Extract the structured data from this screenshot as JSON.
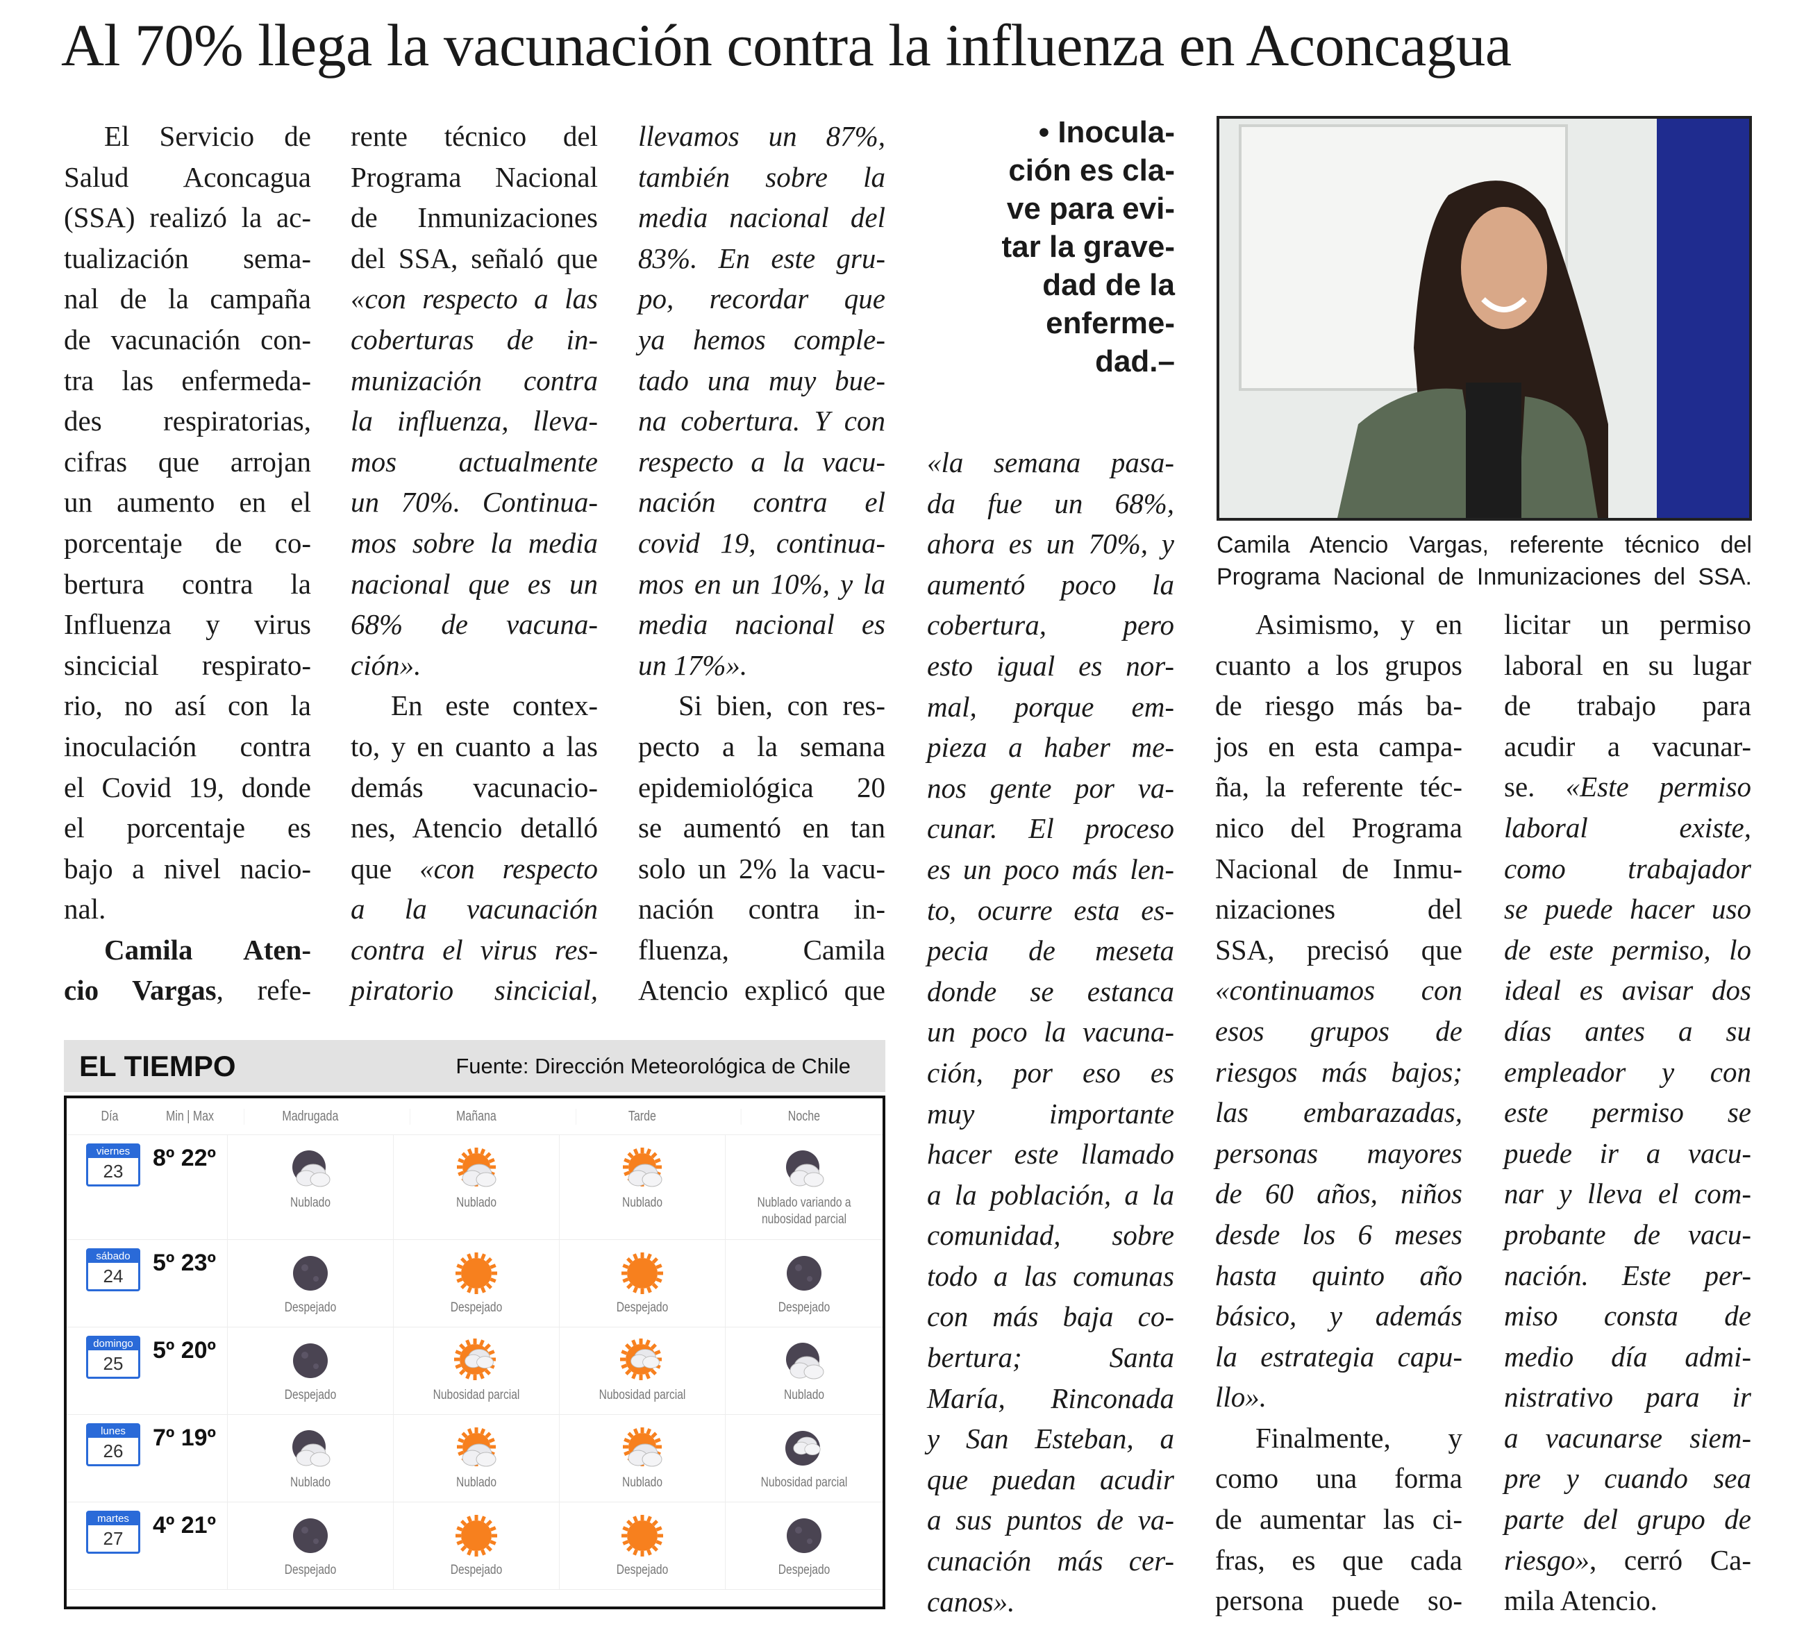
{
  "headline": "Al 70% llega la vacunación contra la influenza en Aconcagua",
  "columns": [
    {
      "s": "r",
      "lines": [
        {
          "t": "El Servicio de",
          "ind": true
        },
        "Salud Aconcagua",
        "(SSA) realizó la ac-",
        "tualización sema-",
        "nal de la campaña",
        "de vacunación con-",
        "tra las enfermeda-",
        "des respiratorias,",
        "cifras que arrojan",
        "un aumento en el",
        "porcentaje de co-",
        "bertura contra la",
        "Influenza y virus",
        "sincicial respirato-",
        "rio, no así con la",
        "inoculación contra",
        "el Covid 19, donde",
        "el porcentaje es",
        "bajo a nivel nacio-",
        {
          "t": "nal.",
          "last": true
        },
        {
          "t": "Camila Aten-",
          "s": "b",
          "ind": true
        },
        {
          "seg": [
            [
              "cio Vargas",
              "b"
            ],
            [
              ", refe-",
              "r"
            ]
          ]
        }
      ]
    },
    {
      "s": "r",
      "lines": [
        "rente técnico del",
        "Programa Nacional",
        "de Inmunizaciones",
        "del SSA, señaló que",
        {
          "t": "«con respecto a las",
          "s": "i"
        },
        {
          "t": "coberturas de in-",
          "s": "i"
        },
        {
          "t": "munización contra",
          "s": "i"
        },
        {
          "t": "la influenza, lleva-",
          "s": "i"
        },
        {
          "t": "mos actualmente",
          "s": "i"
        },
        {
          "t": "un 70%. Continua-",
          "s": "i"
        },
        {
          "t": "mos sobre la media",
          "s": "i"
        },
        {
          "t": "nacional que es un",
          "s": "i"
        },
        {
          "t": "68% de vacuna-",
          "s": "i"
        },
        {
          "t": "ción».",
          "s": "i",
          "last": true
        },
        {
          "t": "En este contex-",
          "ind": true
        },
        "to, y en cuanto a las",
        "demás vacunacio-",
        "nes, Atencio detalló",
        {
          "seg": [
            [
              "que ",
              "r"
            ],
            [
              "«con respecto",
              "i"
            ]
          ]
        },
        {
          "t": "a la vacunación",
          "s": "i"
        },
        {
          "t": "contra el virus res-",
          "s": "i"
        },
        {
          "t": "piratorio sincicial,",
          "s": "i"
        }
      ]
    },
    {
      "s": "i",
      "lines": [
        "llevamos un 87%,",
        "también sobre la",
        "media nacional del",
        "83%. En este gru-",
        "po, recordar que",
        "ya hemos comple-",
        "tado una muy bue-",
        "na cobertura. Y con",
        "respecto a la vacu-",
        "nación contra el",
        "covid 19, continua-",
        "mos en un 10%, y la",
        "media nacional es",
        {
          "t": "un 17%».",
          "last": true
        },
        {
          "t": "Si bien, con res-",
          "s": "r",
          "ind": true
        },
        {
          "t": "pecto a la semana",
          "s": "r"
        },
        {
          "t": "epidemiológica 20",
          "s": "r"
        },
        {
          "t": "se aumentó en tan",
          "s": "r"
        },
        {
          "t": "solo un 2% la vacu-",
          "s": "r"
        },
        {
          "t": "nación contra in-",
          "s": "r"
        },
        {
          "t": "fluenza, Camila",
          "s": "r"
        },
        {
          "t": "Atencio explicó que",
          "s": "r"
        }
      ]
    },
    {
      "s": "i",
      "lines": [
        "«la semana pasa-",
        "da fue un 68%,",
        "ahora es un 70%, y",
        "aumentó poco la",
        "cobertura, pero",
        "esto igual es nor-",
        "mal, porque em-",
        "pieza a haber me-",
        "nos gente por va-",
        "cunar. El proceso",
        "es un poco más len-",
        "to, ocurre esta es-",
        "pecia de meseta",
        "donde se estanca",
        "un poco la vacuna-",
        "ción, por eso es",
        "muy importante",
        "hacer este llamado",
        "a la población, a la",
        "comunidad, sobre",
        "todo a las comunas",
        "con más baja co-",
        "bertura; Santa",
        "María, Rinconada",
        "y San Esteban, a",
        "que puedan acudir",
        "a sus puntos de va-",
        "cunación más cer-",
        {
          "t": "canos».",
          "last": true
        }
      ]
    },
    {
      "s": "r",
      "lines": [
        {
          "t": "Asimismo, y en",
          "ind": true
        },
        "cuanto a los grupos",
        "de riesgo más ba-",
        "jos en esta campa-",
        "ña, la referente téc-",
        "nico del Programa",
        "Nacional de Inmu-",
        "nizaciones del",
        "SSA, precisó que",
        {
          "t": "«continuamos con",
          "s": "i"
        },
        {
          "t": "esos grupos de",
          "s": "i"
        },
        {
          "t": "riesgos más bajos;",
          "s": "i"
        },
        {
          "t": "las embarazadas,",
          "s": "i"
        },
        {
          "t": "personas mayores",
          "s": "i"
        },
        {
          "t": "de 60 años, niños",
          "s": "i"
        },
        {
          "t": "desde los 6 meses",
          "s": "i"
        },
        {
          "t": "hasta quinto año",
          "s": "i"
        },
        {
          "t": "básico, y además",
          "s": "i"
        },
        {
          "t": "la estrategia capu-",
          "s": "i"
        },
        {
          "t": "llo».",
          "s": "i",
          "last": true
        },
        {
          "t": "Finalmente, y",
          "ind": true
        },
        "como una forma",
        "de aumentar las ci-",
        "fras, es que cada",
        "persona puede so-"
      ]
    },
    {
      "s": "r",
      "lines": [
        "licitar un permiso",
        "laboral en su lugar",
        "de trabajo para",
        "acudir a vacunar-",
        {
          "seg": [
            [
              "se. ",
              "r"
            ],
            [
              "«Este permiso",
              "i"
            ]
          ]
        },
        {
          "t": "laboral existe,",
          "s": "i"
        },
        {
          "t": "como trabajador",
          "s": "i"
        },
        {
          "t": "se puede hacer uso",
          "s": "i"
        },
        {
          "t": "de este permiso, lo",
          "s": "i"
        },
        {
          "t": "ideal es avisar dos",
          "s": "i"
        },
        {
          "t": "días antes a su",
          "s": "i"
        },
        {
          "t": "empleador y con",
          "s": "i"
        },
        {
          "t": "este permiso se",
          "s": "i"
        },
        {
          "t": "puede ir a vacu-",
          "s": "i"
        },
        {
          "t": "nar y lleva el com-",
          "s": "i"
        },
        {
          "t": "probante de vacu-",
          "s": "i"
        },
        {
          "t": "nación. Este per-",
          "s": "i"
        },
        {
          "t": "miso consta de",
          "s": "i"
        },
        {
          "t": "medio día admi-",
          "s": "i"
        },
        {
          "t": "nistrativo para ir",
          "s": "i"
        },
        {
          "t": "a vacunarse siem-",
          "s": "i"
        },
        {
          "t": "pre y cuando sea",
          "s": "i"
        },
        {
          "t": "parte del grupo de",
          "s": "i"
        },
        {
          "seg": [
            [
              "riesgo»",
              "i"
            ],
            [
              ", cerró Ca-",
              "r"
            ]
          ]
        },
        {
          "t": "mila Atencio.",
          "last": true
        }
      ]
    }
  ],
  "pull_quote": [
    "• Inocula-",
    "ción es cla-",
    "ve para evi-",
    "tar la grave-",
    "dad de la",
    "enferme-",
    "dad.–"
  ],
  "photo": {
    "subject": "portrait-photo"
  },
  "caption": [
    "Camila Atencio Vargas, referente técnico del",
    "Programa Nacional de Inmunizaciones del SSA."
  ],
  "weather": {
    "title": "EL TIEMPO",
    "source": "Fuente: Dirección Meteorológica de Chile",
    "headers": [
      "Día",
      "Min | Max",
      "Madrugada",
      "Mañana",
      "Tarde",
      "Noche"
    ],
    "colors": {
      "calendar": "#2a6ad8",
      "sun": "#f7801e",
      "moon": "#4a4452"
    },
    "rows": [
      {
        "dayname": "viernes",
        "day": "23",
        "min": "8º",
        "max": "22º",
        "periods": [
          {
            "icon": "night-cloudy-icon",
            "desc": "Nublado"
          },
          {
            "icon": "day-cloudy-icon",
            "desc": "Nublado"
          },
          {
            "icon": "day-cloudy-icon",
            "desc": "Nublado"
          },
          {
            "icon": "night-cloudy-icon",
            "desc": "Nublado variando a nubosidad parcial"
          }
        ]
      },
      {
        "dayname": "sábado",
        "day": "24",
        "min": "5º",
        "max": "23º",
        "periods": [
          {
            "icon": "moon-icon",
            "desc": "Despejado"
          },
          {
            "icon": "sun-icon",
            "desc": "Despejado"
          },
          {
            "icon": "sun-icon",
            "desc": "Despejado"
          },
          {
            "icon": "moon-icon",
            "desc": "Despejado"
          }
        ]
      },
      {
        "dayname": "domingo",
        "day": "25",
        "min": "5º",
        "max": "20º",
        "periods": [
          {
            "icon": "moon-icon",
            "desc": "Despejado"
          },
          {
            "icon": "day-partly-cloudy-icon",
            "desc": "Nubosidad parcial"
          },
          {
            "icon": "day-partly-cloudy-icon",
            "desc": "Nubosidad parcial"
          },
          {
            "icon": "night-cloudy-icon",
            "desc": "Nublado"
          }
        ]
      },
      {
        "dayname": "lunes",
        "day": "26",
        "min": "7º",
        "max": "19º",
        "periods": [
          {
            "icon": "night-cloudy-icon",
            "desc": "Nublado"
          },
          {
            "icon": "day-cloudy-icon",
            "desc": "Nublado"
          },
          {
            "icon": "day-cloudy-icon",
            "desc": "Nublado"
          },
          {
            "icon": "night-partly-cloudy-icon",
            "desc": "Nubosidad parcial"
          }
        ]
      },
      {
        "dayname": "martes",
        "day": "27",
        "min": "4º",
        "max": "21º",
        "periods": [
          {
            "icon": "moon-icon",
            "desc": "Despejado"
          },
          {
            "icon": "sun-icon",
            "desc": "Despejado"
          },
          {
            "icon": "sun-icon",
            "desc": "Despejado"
          },
          {
            "icon": "moon-icon",
            "desc": "Despejado"
          }
        ]
      }
    ]
  }
}
